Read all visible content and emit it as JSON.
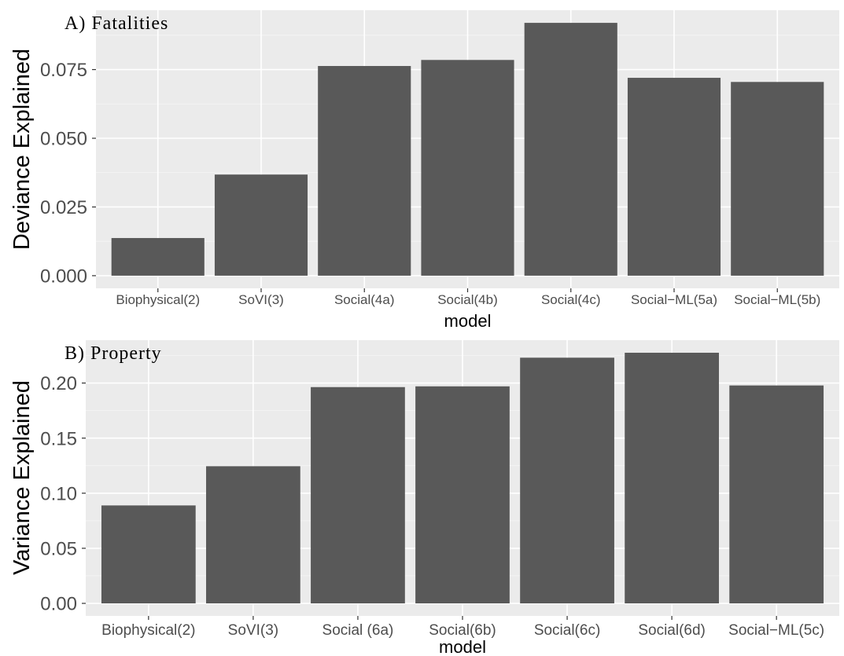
{
  "chart_data": [
    {
      "type": "bar",
      "title": "A) Fatalities",
      "xlabel": "model",
      "ylabel": "Deviance Explained",
      "categories": [
        "Biophysical(2)",
        "SoVI(3)",
        "Social(4a)",
        "Social(4b)",
        "Social(4c)",
        "Social−ML(5a)",
        "Social−ML(5b)"
      ],
      "values": [
        0.0137,
        0.0368,
        0.0763,
        0.0785,
        0.092,
        0.072,
        0.0705
      ],
      "ylim": [
        -0.0046,
        0.0966
      ],
      "yticks": [
        0.0,
        0.025,
        0.05,
        0.075
      ],
      "ytick_labels": [
        "0.000",
        "0.025",
        "0.050",
        "0.075"
      ],
      "grid": true
    },
    {
      "type": "bar",
      "title": "B) Property",
      "xlabel": "model",
      "ylabel": "Variance Explained",
      "categories": [
        "Biophysical(2)",
        "SoVI(3)",
        "Social (6a)",
        "Social(6b)",
        "Social(6c)",
        "Social(6d)",
        "Social−ML(5c)"
      ],
      "values": [
        0.0889,
        0.1245,
        0.1963,
        0.197,
        0.223,
        0.2275,
        0.1978
      ],
      "ylim": [
        -0.0114,
        0.2389
      ],
      "yticks": [
        0.0,
        0.05,
        0.1,
        0.15,
        0.2
      ],
      "ytick_labels": [
        "0.00",
        "0.05",
        "0.10",
        "0.15",
        "0.20"
      ],
      "grid": true
    }
  ]
}
